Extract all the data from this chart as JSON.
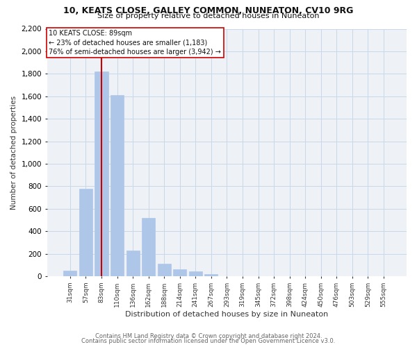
{
  "title1": "10, KEATS CLOSE, GALLEY COMMON, NUNEATON, CV10 9RG",
  "title2": "Size of property relative to detached houses in Nuneaton",
  "xlabel": "Distribution of detached houses by size in Nuneaton",
  "ylabel": "Number of detached properties",
  "categories": [
    "31sqm",
    "57sqm",
    "83sqm",
    "110sqm",
    "136sqm",
    "162sqm",
    "188sqm",
    "214sqm",
    "241sqm",
    "267sqm",
    "293sqm",
    "319sqm",
    "345sqm",
    "372sqm",
    "398sqm",
    "424sqm",
    "450sqm",
    "476sqm",
    "503sqm",
    "529sqm",
    "555sqm"
  ],
  "values": [
    50,
    780,
    1820,
    1610,
    230,
    520,
    110,
    60,
    40,
    20,
    0,
    0,
    0,
    0,
    0,
    0,
    0,
    0,
    0,
    0,
    0
  ],
  "bar_color": "#aec6e8",
  "bar_edge_color": "#aec6e8",
  "grid_color": "#c8d8e8",
  "vline_x_idx": 2,
  "vline_color": "#cc0000",
  "annotation_text": "10 KEATS CLOSE: 89sqm\n← 23% of detached houses are smaller (1,183)\n76% of semi-detached houses are larger (3,942) →",
  "annotation_box_color": "#cc0000",
  "ylim": [
    0,
    2200
  ],
  "yticks": [
    0,
    200,
    400,
    600,
    800,
    1000,
    1200,
    1400,
    1600,
    1800,
    2000,
    2200
  ],
  "footer1": "Contains HM Land Registry data © Crown copyright and database right 2024.",
  "footer2": "Contains public sector information licensed under the Open Government Licence v3.0.",
  "background_color": "#ffffff",
  "plot_bg_color": "#eef2f7"
}
